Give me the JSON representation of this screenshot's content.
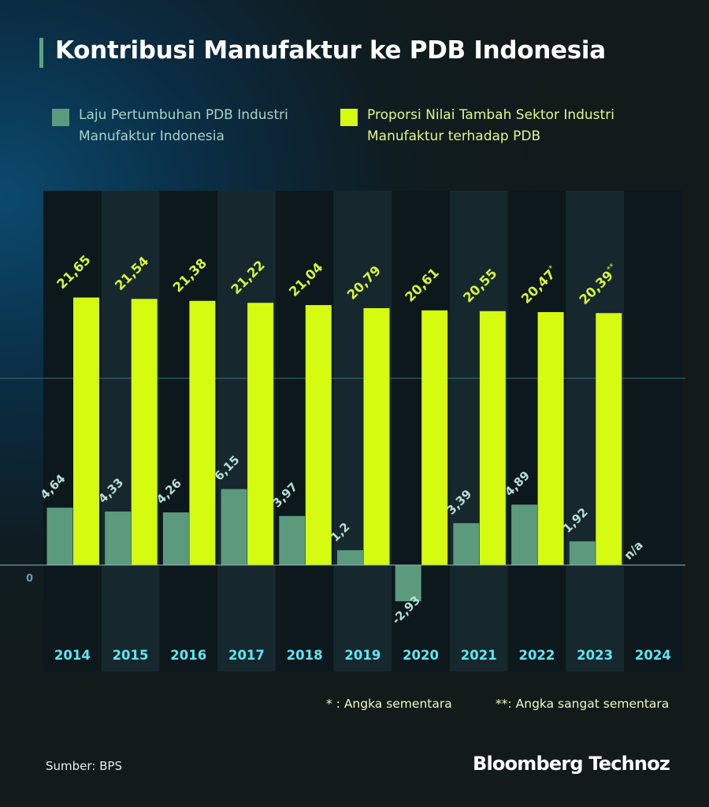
{
  "title": "Kontribusi Manufaktur ke PDB Indonesia",
  "legend": {
    "growth": "Laju Pertumbuhan PDB Industri Manufaktur Indonesia",
    "share": "Proporsi Nilai Tambah Sektor Industri Manufaktur terhadap PDB"
  },
  "colors": {
    "growth_bar": "#5c9a7d",
    "share_bar": "#d4fb10",
    "year_label": "#5fe6f2",
    "growth_label": "#b7e0d4",
    "share_label": "#d6f53a",
    "zero_label": "#6a9bb8"
  },
  "footnotes": {
    "single": "* : Angka sementara",
    "double": "**: Angka sangat sementara"
  },
  "source": "Sumber: BPS",
  "brand": "Bloomberg Technoz",
  "chart_data": {
    "type": "bar",
    "categories": [
      "2014",
      "2015",
      "2016",
      "2017",
      "2018",
      "2019",
      "2020",
      "2021",
      "2022",
      "2023",
      "2024"
    ],
    "zero_label": "0",
    "series": [
      {
        "name": "Laju Pertumbuhan PDB Industri Manufaktur Indonesia",
        "values": [
          4.64,
          4.33,
          4.26,
          6.15,
          3.97,
          1.2,
          -2.93,
          3.39,
          4.89,
          1.92,
          null
        ],
        "labels": [
          "4,64",
          "4,33",
          "4,26",
          "6,15",
          "3,97",
          "1,2",
          "-2,93",
          "3,39",
          "4,89",
          "1,92",
          "n/a"
        ]
      },
      {
        "name": "Proporsi Nilai Tambah Sektor Industri Manufaktur terhadap PDB",
        "values": [
          21.65,
          21.54,
          21.38,
          21.22,
          21.04,
          20.79,
          20.61,
          20.55,
          20.47,
          20.39,
          null
        ],
        "labels": [
          "21,65",
          "21,54",
          "21,38",
          "21,22",
          "21,04",
          "20,79",
          "20,61",
          "20,55",
          "20,47",
          "20,39",
          ""
        ],
        "label_suffixes": [
          "",
          "",
          "",
          "",
          "",
          "",
          "",
          "",
          "*",
          "**",
          ""
        ]
      }
    ],
    "grid": true,
    "legend_position": "top"
  }
}
